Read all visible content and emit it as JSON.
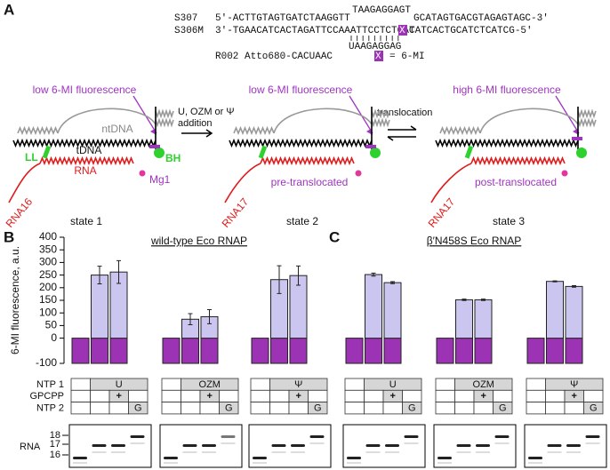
{
  "panels": {
    "a": "A",
    "b": "B",
    "c": "C"
  },
  "sequences": {
    "s307": {
      "name": "S307",
      "left": "5'-ACTTGTAGTGATCTAAGGTT",
      "loop": "TAAGAGGAGT",
      "right": "GCATAGTGACGTAGAGTAGC-3'"
    },
    "s306m": {
      "name": "S306M",
      "left": "3'-TGAACATCACTAGATTCCAAATTCCTCTCAC",
      "mark": "X",
      "right": "TATCACTGCATCTCATCG-5'"
    },
    "rna_pair": "UAAGAGGAG",
    "r002": "R002 Atto680-CACUAAC",
    "legend_mark": "X",
    "legend_text": "= 6-MI"
  },
  "diagram": {
    "state1": {
      "signal": "low 6-MI fluorescence",
      "ntdna": "ntDNA",
      "tdna": "tDNA",
      "ll": "LL",
      "bh": "BH",
      "rna": "RNA",
      "mg": "Mg1",
      "rna_name": "RNA16",
      "caption": "state 1"
    },
    "step1": {
      "line1": "U, OZM or Ψ",
      "line2": "addition"
    },
    "state2": {
      "signal": "low 6-MI fluorescence",
      "note": "pre-translocated",
      "rna_name": "RNA17",
      "caption": "state 2"
    },
    "step2": "translocation",
    "state3": {
      "signal": "high 6-MI fluorescence",
      "note": "post-translocated",
      "rna_name": "RNA17",
      "caption": "state 3"
    }
  },
  "table": {
    "row_labels": [
      "NTP 1",
      "GPCPP",
      "NTP 2"
    ],
    "plus": "+",
    "second_ntp": "G"
  },
  "gel": {
    "label": "RNA",
    "sizes": [
      18,
      17,
      16
    ]
  },
  "chart_data": [
    {
      "type": "bar",
      "title": "wild-type Eco RNAP",
      "ylabel": "6-MI fluorescence, a.u.",
      "groups": [
        "U",
        "OZM",
        "Ψ"
      ],
      "categories": [
        null,
        null,
        null,
        null,
        null,
        null,
        null,
        null,
        null
      ],
      "series": [
        {
          "color": "#9c33b5",
          "values": [
            -100,
            -100,
            -100,
            -100,
            -100,
            -100,
            -100,
            -100,
            -100
          ]
        },
        {
          "color": "#cbc6f0",
          "values": [
            null,
            250,
            262,
            null,
            75,
            85,
            null,
            232,
            248
          ],
          "errors": [
            null,
            35,
            45,
            null,
            22,
            28,
            null,
            55,
            38
          ]
        }
      ],
      "ylim": [
        -100,
        400
      ],
      "yticks": [
        -100,
        0,
        50,
        100,
        150,
        200,
        250,
        300,
        350,
        400
      ],
      "y_axis": true
    },
    {
      "type": "bar",
      "title": "β′N458S Eco RNAP",
      "groups": [
        "U",
        "OZM",
        "Ψ"
      ],
      "categories": [
        null,
        null,
        null,
        null,
        null,
        null,
        null,
        null,
        null
      ],
      "series": [
        {
          "color": "#9c33b5",
          "values": [
            -100,
            -100,
            -100,
            -100,
            -100,
            -100,
            -100,
            -100,
            -100
          ]
        },
        {
          "color": "#cbc6f0",
          "values": [
            null,
            252,
            220,
            null,
            152,
            152,
            null,
            225,
            205
          ],
          "errors": [
            null,
            6,
            4,
            null,
            3,
            3,
            null,
            2,
            3
          ]
        }
      ],
      "ylim": [
        -100,
        400
      ],
      "yticks": [
        -100,
        0,
        50,
        100,
        150,
        200,
        250,
        300,
        350,
        400
      ],
      "y_axis": false
    }
  ]
}
